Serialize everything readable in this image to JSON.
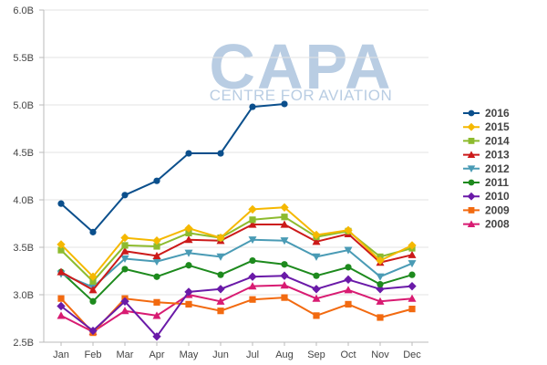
{
  "chart_data": {
    "type": "line",
    "title": "",
    "xlabel": "",
    "ylabel": "",
    "categories": [
      "Jan",
      "Feb",
      "Mar",
      "Apr",
      "May",
      "Jun",
      "Jul",
      "Aug",
      "Sep",
      "Oct",
      "Nov",
      "Dec"
    ],
    "ylim": [
      2.5,
      6.0
    ],
    "yticks": [
      2.5,
      3.0,
      3.5,
      4.0,
      4.5,
      5.0,
      5.5,
      6.0
    ],
    "ytick_labels": [
      "2.5B",
      "3.0B",
      "3.5B",
      "4.0B",
      "4.5B",
      "5.0B",
      "5.5B",
      "6.0B"
    ],
    "grid": "horizontal",
    "legend_position": "right",
    "series": [
      {
        "name": "2016",
        "color": "#0b4f8c",
        "marker": "circle",
        "values": [
          3.96,
          3.66,
          4.05,
          4.2,
          4.49,
          4.49,
          4.98,
          5.01,
          null,
          null,
          null,
          null
        ]
      },
      {
        "name": "2015",
        "color": "#f5b800",
        "marker": "diamond",
        "values": [
          3.53,
          3.19,
          3.6,
          3.57,
          3.7,
          3.6,
          3.9,
          3.92,
          3.63,
          3.68,
          3.36,
          3.52
        ]
      },
      {
        "name": "2014",
        "color": "#8dbb2e",
        "marker": "square",
        "values": [
          3.47,
          3.14,
          3.52,
          3.51,
          3.65,
          3.6,
          3.79,
          3.82,
          3.61,
          3.67,
          3.4,
          3.49
        ]
      },
      {
        "name": "2013",
        "color": "#cc1a1a",
        "marker": "triangle",
        "values": [
          3.24,
          3.05,
          3.46,
          3.41,
          3.58,
          3.57,
          3.74,
          3.74,
          3.56,
          3.64,
          3.34,
          3.42
        ]
      },
      {
        "name": "2012",
        "color": "#4a9bb5",
        "marker": "triangle-down",
        "values": [
          3.22,
          3.08,
          3.38,
          3.35,
          3.44,
          3.4,
          3.58,
          3.57,
          3.4,
          3.47,
          3.19,
          3.33
        ]
      },
      {
        "name": "2011",
        "color": "#1d8a1d",
        "marker": "circle",
        "values": [
          3.24,
          2.93,
          3.27,
          3.19,
          3.31,
          3.21,
          3.36,
          3.32,
          3.2,
          3.29,
          3.11,
          3.21
        ]
      },
      {
        "name": "2010",
        "color": "#6a1aa8",
        "marker": "diamond",
        "values": [
          2.88,
          2.62,
          2.93,
          2.56,
          3.03,
          3.06,
          3.19,
          3.2,
          3.06,
          3.16,
          3.06,
          3.09
        ]
      },
      {
        "name": "2009",
        "color": "#f26a10",
        "marker": "square",
        "values": [
          2.96,
          2.6,
          2.96,
          2.92,
          2.9,
          2.83,
          2.95,
          2.97,
          2.78,
          2.9,
          2.76,
          2.85
        ]
      },
      {
        "name": "2008",
        "color": "#d81b72",
        "marker": "triangle",
        "values": [
          2.78,
          2.61,
          2.83,
          2.78,
          3.0,
          2.93,
          3.09,
          3.1,
          2.96,
          3.05,
          2.93,
          2.96
        ]
      }
    ]
  },
  "watermark": {
    "logo_text": "CAPA",
    "subtitle": "CENTRE FOR AVIATION",
    "color": "#b9cde3"
  }
}
